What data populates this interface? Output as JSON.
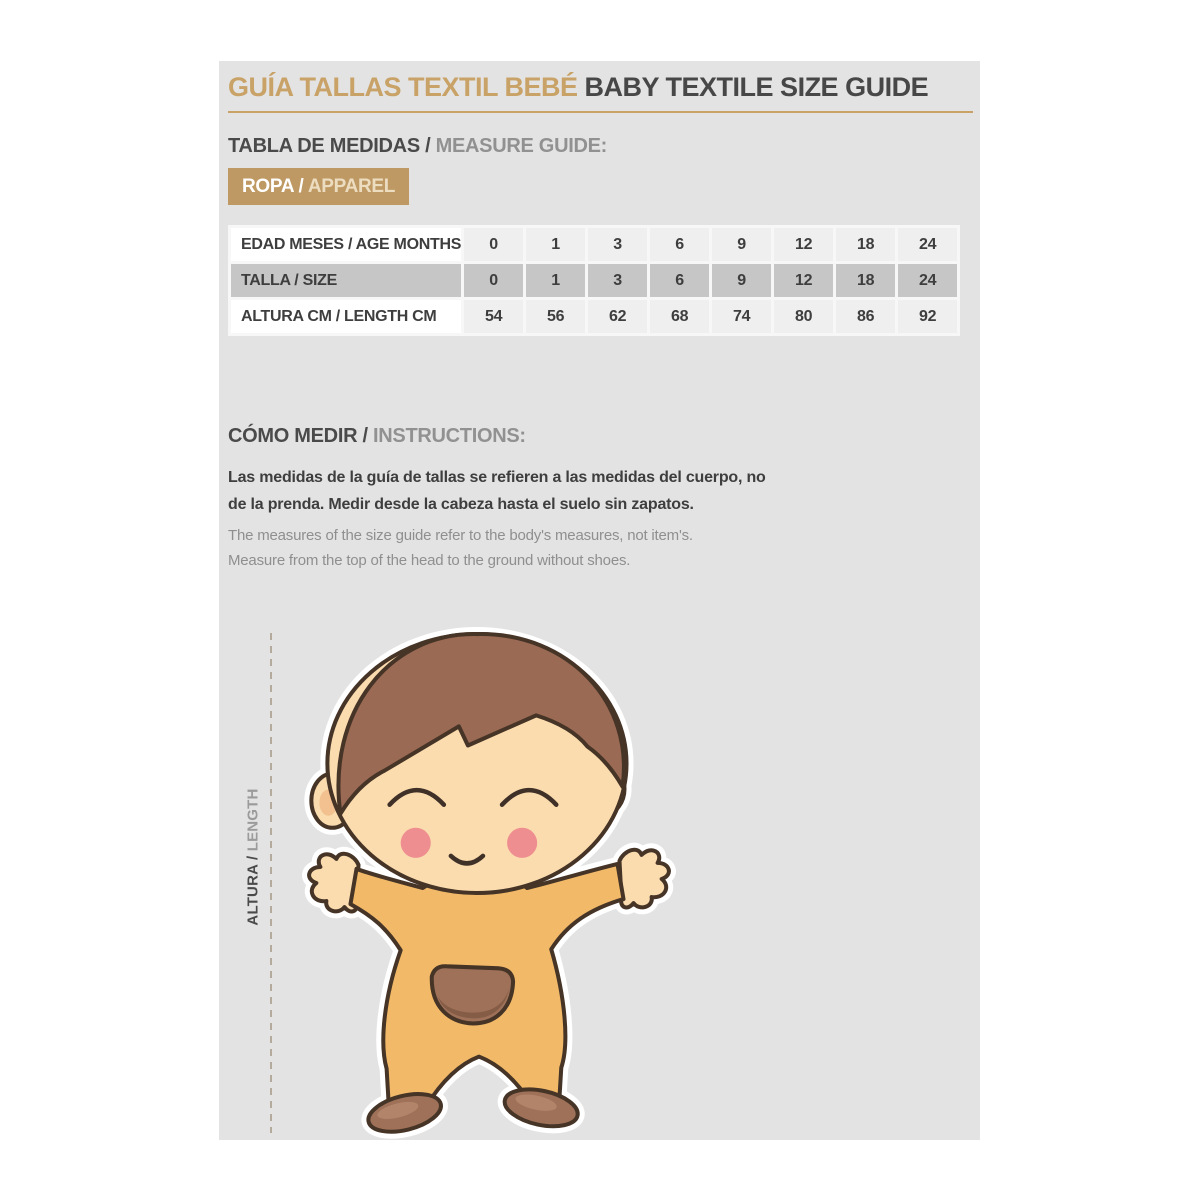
{
  "colors": {
    "accent_tan": "#c8a266",
    "badge_tan": "#bf9963",
    "panel_gray": "#e3e3e3",
    "dark_text": "#474747",
    "muted_text": "#919191",
    "table_row_gray": "#c6c6c6",
    "hair_brown": "#9a6a54",
    "skin": "#fbdcae",
    "onesie_orange": "#f2ba68",
    "pocket_brown": "#9e7158",
    "cheek_pink": "#ee8e90"
  },
  "header": {
    "title_es": "GUÍA TALLAS TEXTIL BEBÉ",
    "title_en": "BABY TEXTILE SIZE GUIDE"
  },
  "measure_section": {
    "heading_es": "TABLA DE MEDIDAS /",
    "heading_en": "MEASURE GUIDE:",
    "badge_es": "ROPA /",
    "badge_en": "APPAREL"
  },
  "size_table": {
    "rows": [
      {
        "label": "EDAD MESES / AGE MONTHS",
        "values": [
          "0",
          "1",
          "3",
          "6",
          "9",
          "12",
          "18",
          "24"
        ]
      },
      {
        "label": "TALLA / SIZE",
        "values": [
          "0",
          "1",
          "3",
          "6",
          "9",
          "12",
          "18",
          "24"
        ]
      },
      {
        "label": "ALTURA CM / LENGTH CM",
        "values": [
          "54",
          "56",
          "62",
          "68",
          "74",
          "80",
          "86",
          "92"
        ]
      }
    ]
  },
  "instructions": {
    "heading_es": "CÓMO MEDIR /",
    "heading_en": "INSTRUCTIONS:",
    "es_lines": [
      "Las medidas de la guía de tallas se refieren a las medidas del cuerpo, no",
      "de la prenda. Medir desde la cabeza hasta el suelo sin zapatos."
    ],
    "en_lines": [
      "The measures of the size guide refer to the body's measures, not item's.",
      "Measure from the top of the head to the ground without shoes."
    ]
  },
  "figure": {
    "axis_label_es": "ALTURA /",
    "axis_label_en": "LENGTH",
    "illustration": "cartoon baby in onesie with arms outstretched"
  }
}
